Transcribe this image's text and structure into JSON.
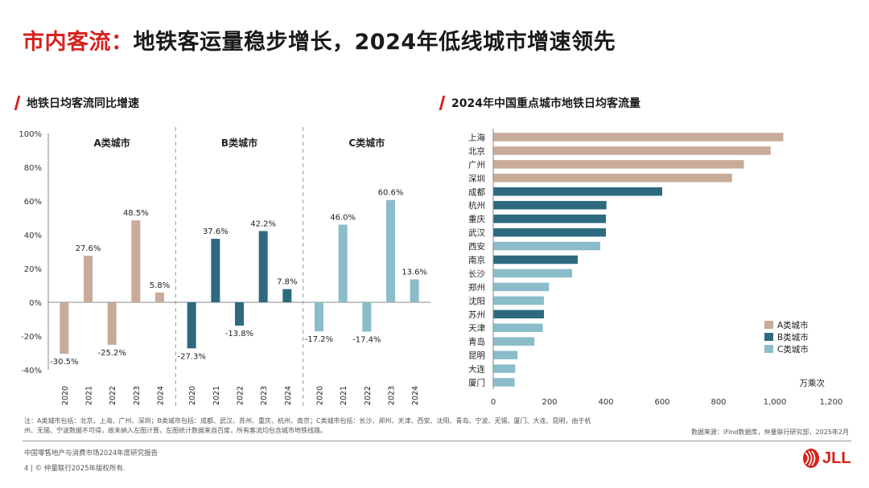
{
  "header": {
    "title_red": "市内客流：",
    "title_rest": "地铁客运量稳步增长，2024年低线城市增速领先"
  },
  "left_section_title": "地铁日均客流同比增速",
  "right_section_title": "2024年中国重点城市地铁日均客流量",
  "colors": {
    "A": "#c8ab98",
    "B": "#2d6a80",
    "C": "#8bbcca",
    "accent": "#d6221e"
  },
  "chart_data": [
    {
      "type": "bar",
      "groups": [
        {
          "name": "A类城市",
          "color_key": "A",
          "x": [
            "2020",
            "2021",
            "2022",
            "2023",
            "2024"
          ],
          "values": [
            -30.5,
            27.6,
            -25.2,
            48.5,
            5.8
          ],
          "labels": [
            "-30.5%",
            "27.6%",
            "-25.2%",
            "48.5%",
            "5.8%"
          ]
        },
        {
          "name": "B类城市",
          "color_key": "B",
          "x": [
            "2020",
            "2021",
            "2022",
            "2023",
            "2024"
          ],
          "values": [
            -27.3,
            37.6,
            -13.8,
            42.2,
            7.8
          ],
          "labels": [
            "-27.3%",
            "37.6%",
            "-13.8%",
            "42.2%",
            "7.8%"
          ]
        },
        {
          "name": "C类城市",
          "color_key": "C",
          "x": [
            "2020",
            "2021",
            "2022",
            "2023",
            "2024"
          ],
          "values": [
            -17.2,
            46.0,
            -17.4,
            60.6,
            13.6
          ],
          "labels": [
            "-17.2%",
            "46.0%",
            "-17.4%",
            "60.6%",
            "13.6%"
          ]
        }
      ],
      "ylim": [
        -40,
        100
      ],
      "yticks": [
        -40,
        -20,
        0,
        20,
        40,
        60,
        80,
        100
      ],
      "ytick_labels": [
        "-40%",
        "-20%",
        "0%",
        "20%",
        "40%",
        "60%",
        "80%",
        "100%"
      ]
    },
    {
      "type": "bar",
      "orientation": "horizontal",
      "unit": "万乘次",
      "categories": [
        "上海",
        "北京",
        "广州",
        "深圳",
        "成都",
        "杭州",
        "重庆",
        "武汉",
        "西安",
        "南京",
        "长沙",
        "郑州",
        "沈阳",
        "苏州",
        "天津",
        "青岛",
        "昆明",
        "大连",
        "厦门"
      ],
      "values": [
        1030,
        985,
        890,
        848,
        600,
        402,
        400,
        400,
        380,
        300,
        280,
        198,
        180,
        180,
        176,
        146,
        86,
        78,
        76
      ],
      "class_keys": [
        "A",
        "A",
        "A",
        "A",
        "B",
        "B",
        "B",
        "B",
        "C",
        "B",
        "C",
        "C",
        "C",
        "B",
        "C",
        "C",
        "C",
        "C",
        "C"
      ],
      "xlim": [
        0,
        1200
      ],
      "xticks": [
        0,
        200,
        400,
        600,
        800,
        1000,
        1200
      ],
      "xtick_labels": [
        "0",
        "200",
        "400",
        "600",
        "800",
        "1,000",
        "1,200"
      ],
      "legend": [
        {
          "key": "A",
          "label": "A类城市"
        },
        {
          "key": "B",
          "label": "B类城市"
        },
        {
          "key": "C",
          "label": "C类城市"
        }
      ],
      "legend_position": "bottom-right"
    }
  ],
  "footer": {
    "note": "注：A类城市包括：北京、上海、广州、深圳；B类城市包括：成都、武汉、苏州、重庆、杭州、南京；C类城市包括：长沙、郑州、天津、西安、沈阳、青岛、宁波、无锡、厦门、大连、昆明，由于杭州、无锡、宁波数据不可得，故未纳入左图计算，左图统计数据来自百度，所有客流均包含城市地铁线路。",
    "source": "数据来源：iFind数据库，仲量联行研究部，2025年2月",
    "report": "中国零售地产与消费市场2024年度研究报告",
    "copyright": "4 | © 仲量联行2025年版权所有."
  },
  "logo": {
    "text": "JLL"
  }
}
